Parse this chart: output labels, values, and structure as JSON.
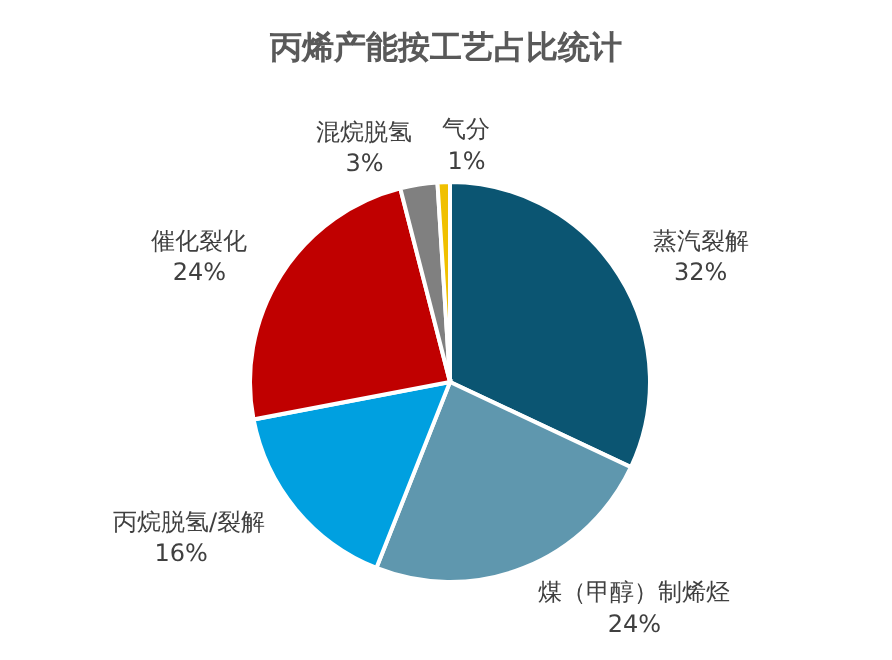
{
  "chart_data": {
    "type": "pie",
    "title": "丙烯产能按工艺占比统计",
    "categories": [
      "蒸汽裂解",
      "煤（甲醇）制烯烃",
      "丙烷脱氢/裂解",
      "催化裂化",
      "混烷脱氢",
      "气分"
    ],
    "values": [
      32,
      24,
      16,
      24,
      3,
      1
    ],
    "value_labels": [
      "32%",
      "24%",
      "16%",
      "24%",
      "3%",
      "1%"
    ],
    "colors": [
      "#0b5572",
      "#5f97ae",
      "#00a0e0",
      "#c00000",
      "#808080",
      "#f0c000"
    ],
    "legend": false
  }
}
